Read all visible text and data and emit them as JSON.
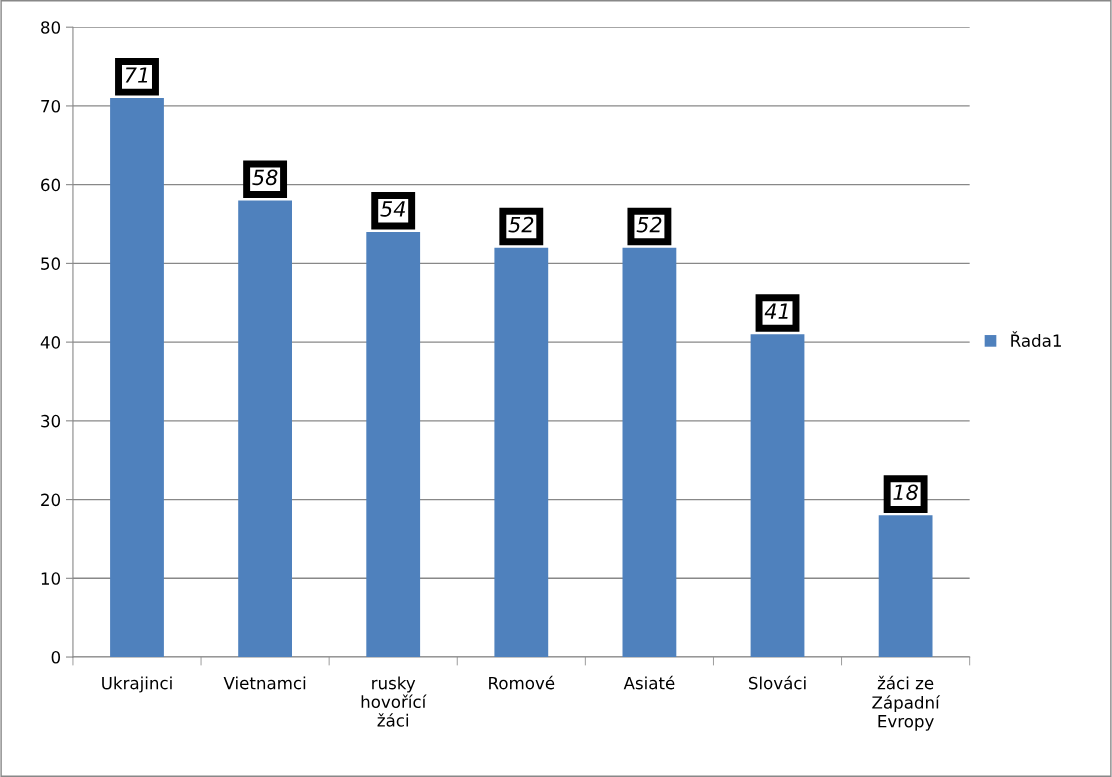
{
  "chart_data": {
    "type": "bar",
    "categories": [
      "Ukrajinci",
      "Vietnamci",
      "rusky\nhovořící\nžáci",
      "Romové",
      "Asiaté",
      "Slováci",
      "žáci ze\nZápadní\nEvropy"
    ],
    "series": [
      {
        "name": "Řada1",
        "color": "#4f81bd",
        "values": [
          71,
          58,
          54,
          52,
          52,
          41,
          18
        ]
      }
    ],
    "ylim": [
      0,
      80
    ],
    "yticks": [
      0,
      10,
      20,
      30,
      40,
      50,
      60,
      70,
      80
    ],
    "grid": "y",
    "legend": "right",
    "data_labels": true
  }
}
